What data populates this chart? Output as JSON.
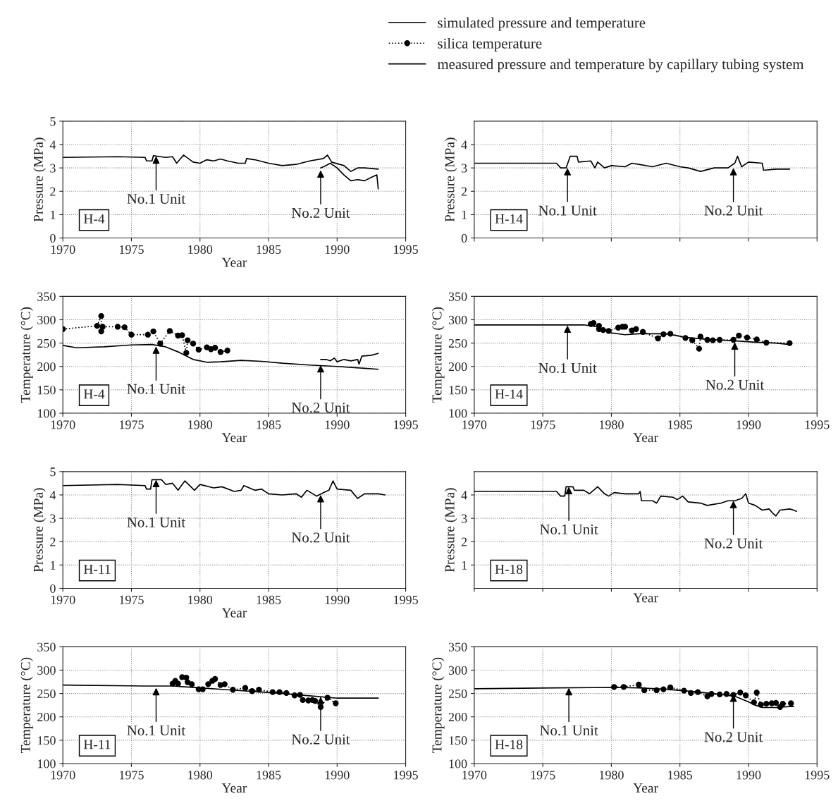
{
  "chart_data": [
    {
      "type": "line",
      "xlabel": "Year",
      "ylabel": "Pressure (MPa)",
      "xlim": [
        1970,
        1995
      ],
      "xticks": [
        1970,
        1975,
        1980,
        1985,
        1990,
        1995
      ],
      "ylim": [
        0,
        5
      ],
      "yticks": [
        0,
        1,
        2,
        3,
        4,
        5
      ],
      "grid": true,
      "series": [
        {
          "color": "#000000",
          "line_style": "solid",
          "x": [
            1970,
            1974,
            1976,
            1976.1,
            1976.5,
            1976.6,
            1977.5,
            1978,
            1978.3,
            1978.8,
            1979.5,
            1980,
            1980.5,
            1981,
            1981.5,
            1982,
            1982.8,
            1983.3,
            1983.4,
            1984,
            1985,
            1986,
            1987,
            1988,
            1989,
            1989.3,
            1989.6,
            1990.5,
            1991,
            1991.5,
            1992,
            1993
          ],
          "values": [
            3.45,
            3.48,
            3.45,
            3.3,
            3.3,
            3.52,
            3.45,
            3.48,
            3.2,
            3.55,
            3.25,
            3.2,
            3.35,
            3.3,
            3.38,
            3.3,
            3.2,
            3.2,
            3.4,
            3.35,
            3.2,
            3.1,
            3.15,
            3.3,
            3.4,
            3.55,
            3.25,
            3.1,
            2.85,
            3.0,
            3.0,
            2.95
          ]
        },
        {
          "color": "#000000",
          "line_style": "solid",
          "x": [
            1988.8,
            1989.2,
            1989.5,
            1990,
            1990.5,
            1991,
            1991.5,
            1992,
            1992.5,
            1992.9,
            1993
          ],
          "values": [
            3.0,
            3.1,
            3.2,
            3.0,
            2.7,
            2.45,
            2.5,
            2.45,
            2.6,
            2.7,
            2.1
          ]
        }
      ],
      "annotations": [
        {
          "text": "No.1 Unit",
          "x": 1976.8,
          "y": 3.5
        },
        {
          "text": "No.2 Unit",
          "x": 1988.8,
          "y": 2.9
        },
        "H-4"
      ]
    },
    {
      "type": "line",
      "ylabel": "Pressure (MPa)",
      "xlim": [
        1970,
        1995
      ],
      "xticks": [
        1970,
        1975,
        1980,
        1985,
        1990,
        1995
      ],
      "ylim": [
        0,
        5
      ],
      "yticks": [
        0,
        1,
        2,
        3,
        4
      ],
      "grid": true,
      "tick_labels": "y",
      "series": [
        {
          "color": "#000000",
          "line_style": "solid",
          "x": [
            1970,
            1976,
            1976.3,
            1976.7,
            1977,
            1977.5,
            1977.6,
            1978.5,
            1978.8,
            1979,
            1979.5,
            1980,
            1981,
            1981.5,
            1982,
            1983,
            1984,
            1985,
            1985.6,
            1986.5,
            1987.5,
            1988.5,
            1989,
            1989.2,
            1989.5,
            1990,
            1991,
            1991.1,
            1992,
            1993
          ],
          "values": [
            3.2,
            3.2,
            3.0,
            3.0,
            3.5,
            3.5,
            3.25,
            3.3,
            3.0,
            3.25,
            3.0,
            3.1,
            3.05,
            3.2,
            3.15,
            3.05,
            3.2,
            3.05,
            3.0,
            2.85,
            3.0,
            3.0,
            3.2,
            3.5,
            3.05,
            3.25,
            3.2,
            2.9,
            2.95,
            2.95
          ]
        }
      ],
      "annotations": [
        {
          "text": "No.1 Unit",
          "x": 1976.8,
          "y": 3.0
        },
        {
          "text": "No.2 Unit",
          "x": 1988.9,
          "y": 3.0
        },
        "H-14"
      ]
    },
    {
      "type": "line",
      "xlabel": "Year",
      "ylabel": "Temperature (°C)",
      "xlim": [
        1970,
        1995
      ],
      "xticks": [
        1970,
        1975,
        1980,
        1985,
        1990,
        1995
      ],
      "ylim": [
        100,
        350
      ],
      "yticks": [
        100,
        150,
        200,
        250,
        300,
        350
      ],
      "grid": true,
      "legend": "top right",
      "series": [
        {
          "name": "simulated pressure and temperature",
          "color": "#000000",
          "line_style": "solid",
          "x": [
            1970,
            1971,
            1973,
            1975,
            1976.5,
            1977.5,
            1978.5,
            1979.5,
            1980.5,
            1981.5,
            1983,
            1984.5,
            1986,
            1988,
            1990,
            1992,
            1993
          ],
          "values": [
            245,
            240,
            242,
            246,
            247,
            242,
            230,
            215,
            209,
            210,
            213,
            211,
            207,
            203,
            200,
            196,
            194
          ]
        },
        {
          "name": "silica temperature",
          "color": "#000000",
          "line_style": "dotted",
          "marker": "circle",
          "x": [
            1970,
            1972.5,
            1972.8,
            1972.8,
            1972.9,
            1974,
            1974.5,
            1975,
            1976.2,
            1976.6,
            1977.1,
            1977.8,
            1978.4,
            1978.7,
            1979,
            1979.1,
            1979.5,
            1979.9,
            1980.5,
            1980.8,
            1981.1,
            1981.5,
            1982
          ],
          "values": [
            280,
            287,
            308,
            275,
            285,
            285,
            284,
            268,
            268,
            275,
            249,
            276,
            266,
            267,
            229,
            256,
            249,
            236,
            241,
            237,
            240,
            231,
            234
          ]
        },
        {
          "name": "measured pressure and temperature by capillary tubing system",
          "color": "#000000",
          "line_style": "solid",
          "x": [
            1988.8,
            1989.2,
            1989.5,
            1989.8,
            1990,
            1990.5,
            1991,
            1991.5,
            1991.6,
            1991.8,
            1992.5,
            1993
          ],
          "values": [
            215,
            215,
            212,
            218,
            210,
            215,
            212,
            215,
            205,
            222,
            224,
            228
          ]
        }
      ],
      "annotations": [
        {
          "text": "No.1 Unit",
          "x": 1976.8,
          "y": 243
        },
        {
          "text": "No.2 Unit",
          "x": 1988.8,
          "y": 203
        },
        "H-4"
      ]
    },
    {
      "type": "line",
      "xlabel": "Year",
      "ylabel": "Temperature (°C)",
      "xlim": [
        1970,
        1995
      ],
      "xticks": [
        1970,
        1975,
        1980,
        1985,
        1990,
        1995
      ],
      "ylim": [
        100,
        350
      ],
      "yticks": [
        100,
        150,
        200,
        250,
        300,
        350
      ],
      "grid": true,
      "series": [
        {
          "color": "#000000",
          "line_style": "solid",
          "x": [
            1970,
            1978,
            1979,
            1980,
            1981,
            1982,
            1984,
            1985.5,
            1987,
            1989,
            1990.5,
            1992,
            1993
          ],
          "values": [
            289,
            289,
            285,
            272,
            268,
            270,
            270,
            262,
            258,
            255,
            252,
            250,
            247
          ]
        },
        {
          "color": "#000000",
          "line_style": "dotted",
          "marker": "circle",
          "x": [
            1978.5,
            1978.7,
            1979.1,
            1979.1,
            1979.4,
            1979.8,
            1980.5,
            1980.8,
            1981.0,
            1981.5,
            1981.8,
            1982.3,
            1983.4,
            1983.8,
            1984.3,
            1985.4,
            1985.9,
            1986.4,
            1986.5,
            1987.0,
            1987.4,
            1987.9,
            1988.9,
            1989.3,
            1989.9,
            1990.6,
            1991.3,
            1993.0
          ],
          "values": [
            291,
            293,
            287,
            280,
            278,
            276,
            283,
            285,
            285,
            277,
            280,
            274,
            260,
            269,
            270,
            261,
            256,
            238,
            264,
            257,
            256,
            257,
            257,
            266,
            262,
            258,
            251,
            250
          ]
        }
      ],
      "annotations": [
        {
          "text": "No.1 Unit",
          "x": 1976.8,
          "y": 288
        },
        {
          "text": "No.2 Unit",
          "x": 1989,
          "y": 252
        },
        "H-14"
      ]
    },
    {
      "type": "line",
      "xlabel": "Year",
      "ylabel": "Pressure (MPa)",
      "xlim": [
        1970,
        1995
      ],
      "xticks": [
        1970,
        1975,
        1980,
        1985,
        1990,
        1995
      ],
      "ylim": [
        0,
        5
      ],
      "yticks": [
        0,
        1,
        2,
        3,
        4,
        5
      ],
      "grid": true,
      "series": [
        {
          "color": "#000000",
          "line_style": "solid",
          "x": [
            1970,
            1974,
            1976,
            1976.1,
            1976.4,
            1976.5,
            1977.2,
            1977.5,
            1978,
            1978.4,
            1978.9,
            1979.6,
            1980,
            1981,
            1981.6,
            1982.5,
            1983,
            1983.2,
            1984,
            1984.5,
            1985,
            1986,
            1987,
            1987.4,
            1987.8,
            1988.5,
            1989,
            1989.4,
            1989.7,
            1990,
            1991,
            1991.5,
            1992,
            1993,
            1993.5
          ],
          "values": [
            4.4,
            4.45,
            4.4,
            4.25,
            4.25,
            4.65,
            4.65,
            4.45,
            4.5,
            4.2,
            4.6,
            4.2,
            4.45,
            4.3,
            4.35,
            4.15,
            4.2,
            4.4,
            4.2,
            4.25,
            4.05,
            4.0,
            4.05,
            3.9,
            4.2,
            3.95,
            4.1,
            4.2,
            4.6,
            4.25,
            4.2,
            3.85,
            4.05,
            4.05,
            4.0
          ]
        }
      ],
      "annotations": [
        {
          "text": "No.1 Unit",
          "x": 1976.8,
          "y": 4.65
        },
        {
          "text": "No.2 Unit",
          "x": 1988.8,
          "y": 4.0
        },
        "H-11"
      ]
    },
    {
      "type": "line",
      "xlabel": "Year",
      "ylabel": "Pressure (MPa)",
      "xlim": [
        1970,
        1995
      ],
      "xticks": [
        1970,
        1975,
        1980,
        1985,
        1990,
        1995
      ],
      "ylim": [
        0,
        5
      ],
      "yticks": [
        1,
        2,
        3,
        4
      ],
      "grid": true,
      "tick_labels": "y",
      "series": [
        {
          "color": "#000000",
          "line_style": "solid",
          "x": [
            1970,
            1976,
            1976.3,
            1976.6,
            1976.7,
            1977.2,
            1977.3,
            1978,
            1978.4,
            1979,
            1979.5,
            1979.8,
            1980.2,
            1981,
            1982,
            1982.1,
            1982.2,
            1983,
            1983.3,
            1983.6,
            1984.5,
            1984.8,
            1985.2,
            1985.6,
            1986.5,
            1987,
            1988,
            1988.5,
            1989,
            1989.5,
            1989.8,
            1990,
            1990.5,
            1991,
            1991.5,
            1991.8,
            1992,
            1992.3,
            1993,
            1993.3,
            1993.5
          ],
          "values": [
            4.15,
            4.15,
            3.95,
            3.95,
            4.35,
            4.35,
            4.2,
            4.2,
            4.05,
            4.35,
            4.05,
            3.95,
            4.1,
            4.05,
            4.05,
            4.15,
            3.75,
            3.75,
            3.65,
            3.95,
            3.9,
            3.8,
            3.95,
            3.7,
            3.65,
            3.55,
            3.65,
            3.75,
            3.75,
            3.85,
            4.05,
            3.65,
            3.55,
            3.35,
            3.4,
            3.2,
            3.1,
            3.35,
            3.4,
            3.35,
            3.3
          ]
        }
      ],
      "annotations": [
        {
          "text": "No.1 Unit",
          "x": 1976.9,
          "y": 4.35
        },
        {
          "text": "No.2 Unit",
          "x": 1988.9,
          "y": 3.75
        },
        "H-18"
      ]
    },
    {
      "type": "line",
      "xlabel": "Year",
      "ylabel": "Temperature (°C)",
      "xlim": [
        1970,
        1995
      ],
      "xticks": [
        1970,
        1975,
        1980,
        1985,
        1990,
        1995
      ],
      "ylim": [
        100,
        350
      ],
      "yticks": [
        100,
        150,
        200,
        250,
        300,
        350
      ],
      "grid": true,
      "series": [
        {
          "color": "#000000",
          "line_style": "solid",
          "x": [
            1970,
            1976,
            1978,
            1980,
            1982,
            1984,
            1986,
            1988,
            1990,
            1993
          ],
          "values": [
            268,
            266,
            266,
            262,
            258,
            254,
            250,
            245,
            240,
            240
          ]
        },
        {
          "color": "#000000",
          "line_style": "dotted",
          "marker": "circle",
          "x": [
            1978.0,
            1978.2,
            1978.4,
            1978.7,
            1979.0,
            1979.1,
            1979.4,
            1979.9,
            1980.2,
            1980.6,
            1980.9,
            1981.1,
            1981.5,
            1981.8,
            1982.4,
            1983.3,
            1983.8,
            1984.3,
            1985.3,
            1985.8,
            1986.3,
            1986.9,
            1987.3,
            1987.5,
            1987.9,
            1988.2,
            1988.4,
            1988.8,
            1989.3,
            1989.9
          ],
          "values": [
            271,
            277,
            271,
            285,
            284,
            274,
            270,
            259,
            259,
            270,
            277,
            281,
            268,
            270,
            258,
            262,
            255,
            258,
            253,
            253,
            251,
            246,
            247,
            236,
            235,
            236,
            234,
            221,
            241,
            229
          ]
        }
      ],
      "annotations": [
        {
          "text": "No.1 Unit",
          "x": 1976.8,
          "y": 262
        },
        {
          "text": "No.2 Unit",
          "x": 1988.8,
          "y": 243
        },
        "H-11"
      ]
    },
    {
      "type": "line",
      "xlabel": "Year",
      "ylabel": "Temperature (°C)",
      "xlim": [
        1970,
        1995
      ],
      "xticks": [
        1970,
        1975,
        1980,
        1985,
        1990,
        1995
      ],
      "ylim": [
        100,
        350
      ],
      "yticks": [
        100,
        150,
        200,
        250,
        300,
        350
      ],
      "grid": true,
      "series": [
        {
          "color": "#000000",
          "line_style": "solid",
          "x": [
            1970,
            1976,
            1980,
            1982,
            1984,
            1986,
            1988,
            1989,
            1990,
            1990.5,
            1991,
            1992,
            1993,
            1993.3
          ],
          "values": [
            260,
            262,
            263,
            262,
            259,
            254,
            248,
            244,
            232,
            225,
            220,
            220,
            222,
            222
          ]
        },
        {
          "color": "#000000",
          "line_style": "dotted",
          "marker": "circle",
          "x": [
            1980.2,
            1980.9,
            1982.0,
            1982.4,
            1983.3,
            1983.8,
            1984.3,
            1985.3,
            1985.8,
            1986.3,
            1987.0,
            1987.3,
            1987.9,
            1988.4,
            1988.9,
            1989.4,
            1989.8,
            1990.4,
            1990.6,
            1990.9,
            1991.3,
            1991.7,
            1992.0,
            1992.3,
            1992.5,
            1993.1
          ],
          "values": [
            264,
            264,
            269,
            257,
            257,
            259,
            263,
            256,
            251,
            253,
            244,
            249,
            248,
            249,
            247,
            252,
            246,
            231,
            252,
            226,
            228,
            229,
            230,
            221,
            228,
            229
          ]
        }
      ],
      "annotations": [
        {
          "text": "No.1 Unit",
          "x": 1976.9,
          "y": 262
        },
        {
          "text": "No.2 Unit",
          "x": 1988.9,
          "y": 248
        },
        "H-18"
      ]
    }
  ]
}
